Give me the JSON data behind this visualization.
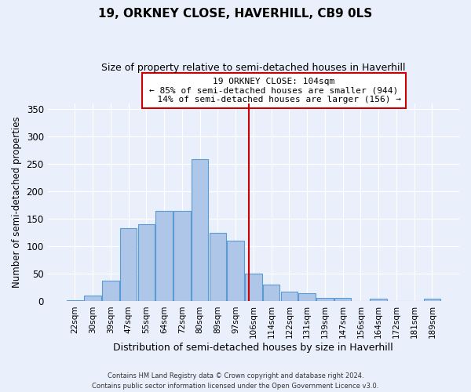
{
  "title": "19, ORKNEY CLOSE, HAVERHILL, CB9 0LS",
  "subtitle": "Size of property relative to semi-detached houses in Haverhill",
  "xlabel": "Distribution of semi-detached houses by size in Haverhill",
  "ylabel": "Number of semi-detached properties",
  "footer": "Contains HM Land Registry data © Crown copyright and database right 2024.\nContains public sector information licensed under the Open Government Licence v3.0.",
  "bar_labels": [
    "22sqm",
    "30sqm",
    "39sqm",
    "47sqm",
    "55sqm",
    "64sqm",
    "72sqm",
    "80sqm",
    "89sqm",
    "97sqm",
    "106sqm",
    "114sqm",
    "122sqm",
    "131sqm",
    "139sqm",
    "147sqm",
    "156sqm",
    "164sqm",
    "172sqm",
    "181sqm",
    "189sqm"
  ],
  "bar_values": [
    2,
    10,
    37,
    133,
    140,
    165,
    165,
    258,
    124,
    110,
    50,
    30,
    18,
    15,
    7,
    6,
    0,
    5,
    0,
    0,
    5
  ],
  "bar_color": "#aec6e8",
  "bar_edge_color": "#5b9bd5",
  "background_color": "#eaf0fb",
  "grid_color": "#ffffff",
  "property_label": "19 ORKNEY CLOSE: 104sqm",
  "pct_smaller": 85,
  "pct_larger": 14,
  "count_smaller": 944,
  "count_larger": 156,
  "red_line_color": "#cc0000",
  "annotation_box_edge_color": "#cc0000",
  "ylim": [
    0,
    360
  ],
  "yticks": [
    0,
    50,
    100,
    150,
    200,
    250,
    300,
    350
  ]
}
